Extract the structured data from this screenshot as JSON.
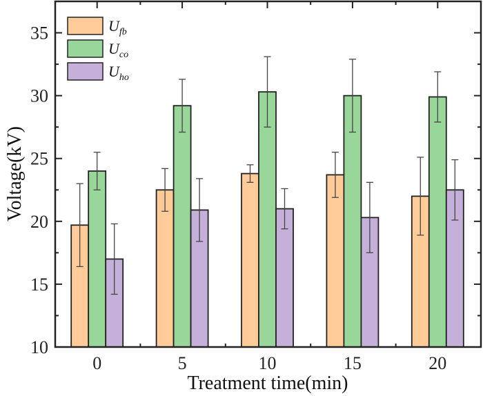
{
  "chart_data": {
    "type": "bar",
    "title": "",
    "xlabel": "Treatment time(min)",
    "ylabel": "Voltage(kV)",
    "categories": [
      "0",
      "5",
      "10",
      "15",
      "20"
    ],
    "ylim": [
      10,
      37.5
    ],
    "yticks": [
      10,
      15,
      20,
      25,
      30,
      35
    ],
    "grid": false,
    "legend_position": "top-left",
    "series": [
      {
        "name": "U",
        "sub": "fb",
        "color": "#FFCC99",
        "values": [
          19.7,
          22.5,
          23.8,
          23.7,
          22.0
        ],
        "errors": [
          3.3,
          1.7,
          0.7,
          1.8,
          3.1
        ]
      },
      {
        "name": "U",
        "sub": "co",
        "color": "#99D699",
        "values": [
          24.0,
          29.2,
          30.3,
          30.0,
          29.9
        ],
        "errors": [
          1.5,
          2.1,
          2.8,
          2.9,
          2.0
        ]
      },
      {
        "name": "U",
        "sub": "ho",
        "color": "#C4B0D8",
        "values": [
          17.0,
          20.9,
          21.0,
          20.3,
          22.5
        ],
        "errors": [
          2.8,
          2.5,
          1.6,
          2.8,
          2.4
        ]
      }
    ]
  }
}
